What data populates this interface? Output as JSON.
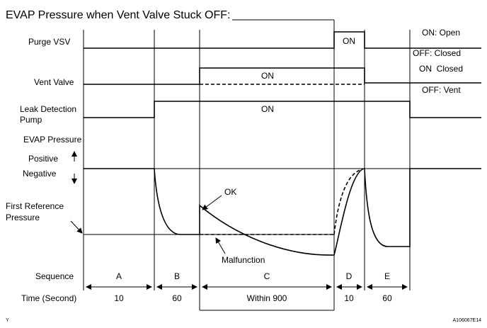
{
  "title": "EVAP Pressure when Vent Valve Stuck OFF:",
  "signals": {
    "purge_vsv": {
      "label": "Purge VSV",
      "on": "ON"
    },
    "vent_valve": {
      "label": "Vent Valve",
      "on": "ON"
    },
    "pump": {
      "label": [
        "Leak Detection",
        "Pump"
      ],
      "on": "ON"
    }
  },
  "legend": [
    "ON: Open",
    "OFF: Closed",
    "ON  Closed",
    "OFF: Vent"
  ],
  "pressure": {
    "label": "EVAP Pressure",
    "positive": "Positive",
    "negative": "Negative",
    "first_reference": [
      "First Reference",
      "Pressure"
    ],
    "ok": "OK",
    "malfunction": "Malfunction"
  },
  "sequence": {
    "label": "Sequence",
    "time_label": "Time (Second)",
    "phases": [
      {
        "name": "A",
        "time": 10
      },
      {
        "name": "B",
        "time": 60
      },
      {
        "name": "C",
        "time": "Within 900"
      },
      {
        "name": "D",
        "time": 10
      },
      {
        "name": "E",
        "time": 60
      }
    ]
  },
  "footer": {
    "left": "Y",
    "right": "A106067E14"
  }
}
